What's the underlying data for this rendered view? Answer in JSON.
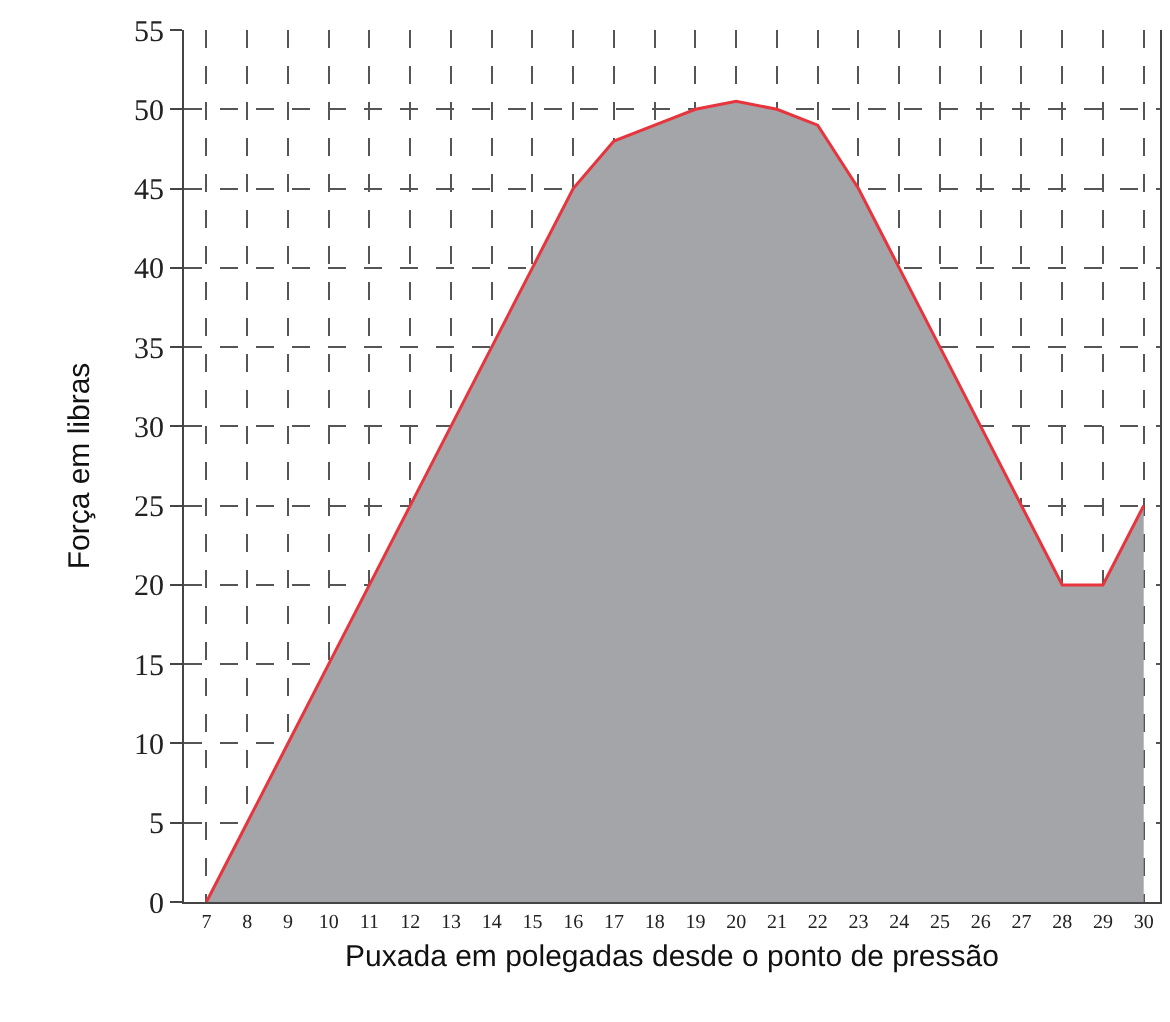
{
  "chart_data": {
    "type": "area",
    "xlabel": "Puxada em polegadas desde o ponto de pressão",
    "ylabel": "Força em libras",
    "x": [
      7,
      8,
      9,
      10,
      11,
      12,
      13,
      14,
      15,
      16,
      17,
      18,
      19,
      20,
      21,
      22,
      23,
      24,
      25,
      26,
      27,
      28,
      29,
      30
    ],
    "series": [
      {
        "color": "#e8343c",
        "values": [
          0,
          5,
          10,
          15,
          20,
          25,
          30,
          35,
          40,
          45,
          48,
          49,
          50,
          50.5,
          50,
          49,
          45,
          40,
          35,
          30,
          25,
          20,
          20,
          25
        ]
      }
    ],
    "xlim": [
      6.45,
      30.4
    ],
    "xticks": [
      7,
      8,
      9,
      10,
      11,
      12,
      13,
      14,
      15,
      16,
      17,
      18,
      19,
      20,
      21,
      22,
      23,
      24,
      25,
      26,
      27,
      28,
      29,
      30
    ],
    "ylim": [
      0,
      55
    ],
    "yticks": [
      0,
      5,
      10,
      15,
      20,
      25,
      30,
      35,
      40,
      45,
      50,
      55
    ],
    "grid": true,
    "legend": false,
    "marker": "none",
    "line_style": "solid"
  }
}
